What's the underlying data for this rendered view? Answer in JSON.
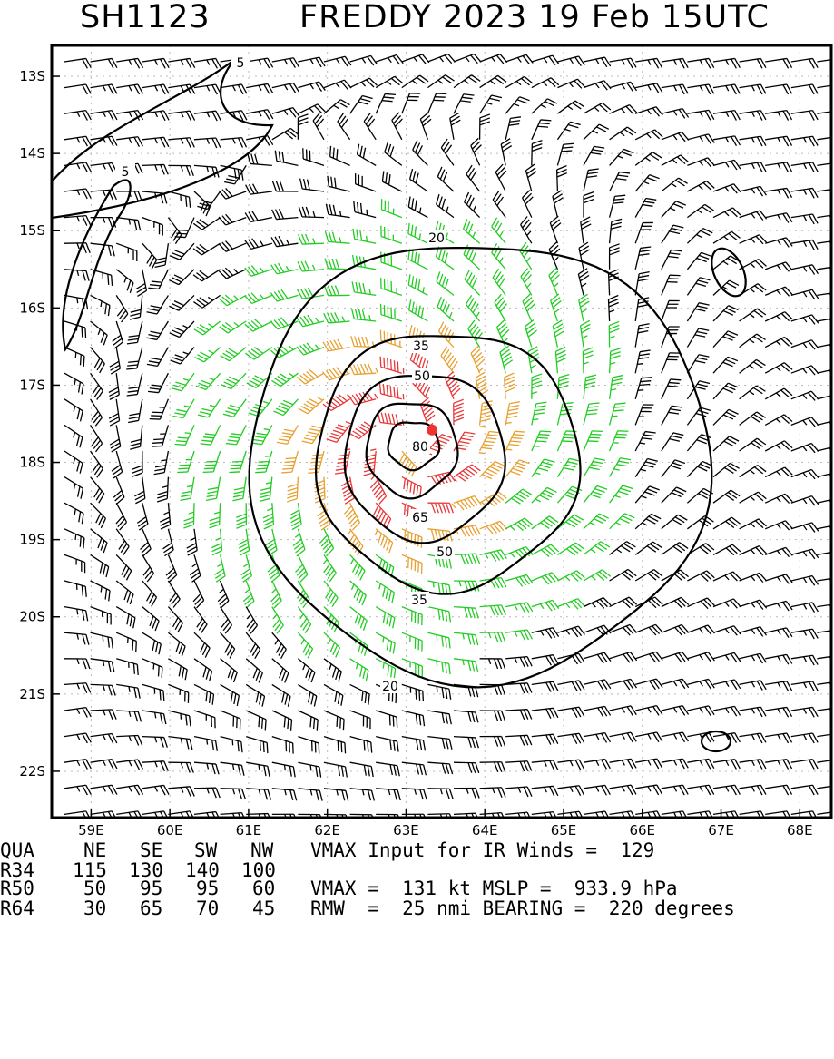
{
  "title": {
    "storm_id": "SH1123",
    "storm_info": "FREDDY 2023 19 Feb 15UTC"
  },
  "chart_data": {
    "type": "wind-barb-contour-map",
    "lat_ticks": [
      "13S",
      "14S",
      "15S",
      "16S",
      "17S",
      "18S",
      "19S",
      "20S",
      "21S",
      "22S"
    ],
    "lon_ticks": [
      "59E",
      "60E",
      "61E",
      "62E",
      "63E",
      "64E",
      "65E",
      "66E",
      "67E",
      "68E"
    ],
    "lat_range": [
      -22.6,
      -12.6
    ],
    "lon_range": [
      58.5,
      68.4
    ],
    "center": {
      "lat": -17.75,
      "lon": 63.0
    },
    "center_marker": {
      "lat": -17.58,
      "lon": 63.33
    },
    "contour_levels": [
      "5",
      "5",
      "20",
      "20",
      "35",
      "35",
      "50",
      "50",
      "65",
      "80"
    ],
    "wind_color_scale": [
      {
        "min_kt": 0,
        "color": "#000000"
      },
      {
        "min_kt": 34,
        "color": "#22cc22"
      },
      {
        "min_kt": 50,
        "color": "#e8a030"
      },
      {
        "min_kt": 64,
        "color": "#e83838"
      }
    ],
    "grid": true
  },
  "info": {
    "header": {
      "label": "QUA",
      "q": [
        "NE",
        "SE",
        "SW",
        "NW"
      ],
      "text": "VMAX Input for IR Winds =  129"
    },
    "r34": {
      "label": "R34",
      "q": [
        "115",
        "130",
        "140",
        "100"
      ],
      "text": ""
    },
    "r50": {
      "label": "R50",
      "q": [
        "50",
        "95",
        "95",
        "60"
      ],
      "text": "VMAX =  131 kt MSLP =  933.9 hPa"
    },
    "r64": {
      "label": "R64",
      "q": [
        "30",
        "65",
        "70",
        "45"
      ],
      "text": "RMW  =  25 nmi BEARING =  220 degrees"
    }
  }
}
